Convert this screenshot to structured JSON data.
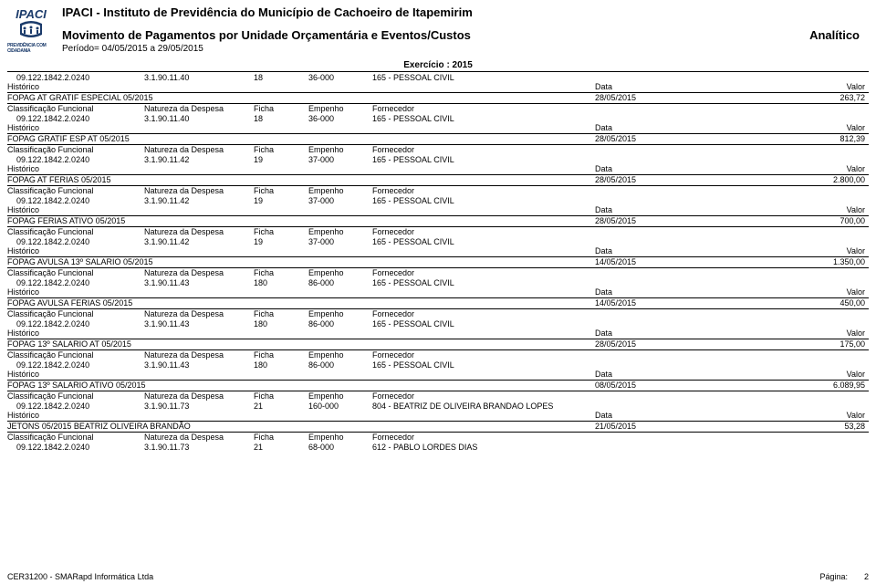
{
  "header": {
    "logo_text": "PREVIDÊNCIA COM CIDADANIA",
    "title_main": "IPACI - Instituto de Previdência do Município de Cachoeiro de Itapemirim",
    "title_sub": "Movimento de Pagamentos por Unidade Orçamentária e Eventos/Custos",
    "analitico": "Analítico",
    "periodo": "Período= 04/05/2015 a 29/05/2015",
    "exercicio": "Exercício :  2015"
  },
  "labels": {
    "classif": "Classificação Funcional",
    "nat": "Natureza da Despesa",
    "ficha": "Ficha",
    "emp": "Empenho",
    "forn": "Fornecedor",
    "hist": "Histórico",
    "data": "Data",
    "valor": "Valor"
  },
  "blocks": [
    {
      "classif": "09.122.1842.2.0240",
      "nat": "3.1.90.11.40",
      "ficha": "18",
      "emp": "36-000",
      "forn": "165 - PESSOAL CIVIL",
      "desc": "FOPAG AT GRATIF ESPECIAL 05/2015",
      "date": "28/05/2015",
      "val": "263,72",
      "show_hdr": false
    },
    {
      "classif": "09.122.1842.2.0240",
      "nat": "3.1.90.11.40",
      "ficha": "18",
      "emp": "36-000",
      "forn": "165 - PESSOAL CIVIL",
      "desc": "FOPAG GRATIF ESP AT 05/2015",
      "date": "28/05/2015",
      "val": "812,39",
      "show_hdr": true
    },
    {
      "classif": "09.122.1842.2.0240",
      "nat": "3.1.90.11.42",
      "ficha": "19",
      "emp": "37-000",
      "forn": "165 - PESSOAL CIVIL",
      "desc": "FOPAG AT FERIAS 05/2015",
      "date": "28/05/2015",
      "val": "2.800,00",
      "show_hdr": true
    },
    {
      "classif": "09.122.1842.2.0240",
      "nat": "3.1.90.11.42",
      "ficha": "19",
      "emp": "37-000",
      "forn": "165 - PESSOAL CIVIL",
      "desc": "FOPAG FERIAS ATIVO 05/2015",
      "date": "28/05/2015",
      "val": "700,00",
      "show_hdr": true
    },
    {
      "classif": "09.122.1842.2.0240",
      "nat": "3.1.90.11.42",
      "ficha": "19",
      "emp": "37-000",
      "forn": "165 - PESSOAL CIVIL",
      "desc": "FOPAG AVULSA 13º SALARIO 05/2015",
      "date": "14/05/2015",
      "val": "1.350,00",
      "show_hdr": true
    },
    {
      "classif": "09.122.1842.2.0240",
      "nat": "3.1.90.11.43",
      "ficha": "180",
      "emp": "86-000",
      "forn": "165 - PESSOAL CIVIL",
      "desc": "FOPAG AVULSA FERIAS 05/2015",
      "date": "14/05/2015",
      "val": "450,00",
      "show_hdr": true
    },
    {
      "classif": "09.122.1842.2.0240",
      "nat": "3.1.90.11.43",
      "ficha": "180",
      "emp": "86-000",
      "forn": "165 - PESSOAL CIVIL",
      "desc": "FOPAG 13º SALARIO AT 05/2015",
      "date": "28/05/2015",
      "val": "175,00",
      "show_hdr": true
    },
    {
      "classif": "09.122.1842.2.0240",
      "nat": "3.1.90.11.43",
      "ficha": "180",
      "emp": "86-000",
      "forn": "165 - PESSOAL CIVIL",
      "desc": "FOPAG 13º SALARIO ATIVO 05/2015",
      "date": "08/05/2015",
      "val": "6.089,95",
      "show_hdr": true
    },
    {
      "classif": "09.122.1842.2.0240",
      "nat": "3.1.90.11.73",
      "ficha": "21",
      "emp": "160-000",
      "forn": "804 - BEATRIZ DE OLIVEIRA BRANDAO LOPES",
      "desc": "JETONS 05/2015 BEATRIZ OLIVEIRA BRANDÃO",
      "date": "21/05/2015",
      "val": "53,28",
      "show_hdr": true
    },
    {
      "classif": "09.122.1842.2.0240",
      "nat": "3.1.90.11.73",
      "ficha": "21",
      "emp": "68-000",
      "forn": "612 - PABLO LORDES DIAS",
      "desc": "",
      "date": "",
      "val": "",
      "show_hdr": true,
      "partial": true
    }
  ],
  "footer": {
    "left": "CER31200 - SMARapd Informática Ltda",
    "pagina_label": "Página:",
    "pagina_num": "2"
  },
  "style": {
    "text_color": "#000000",
    "bg_color": "#ffffff",
    "line_color": "#000000",
    "logo_blue": "#1a3a6a",
    "font_main": 9,
    "font_title": 13
  }
}
